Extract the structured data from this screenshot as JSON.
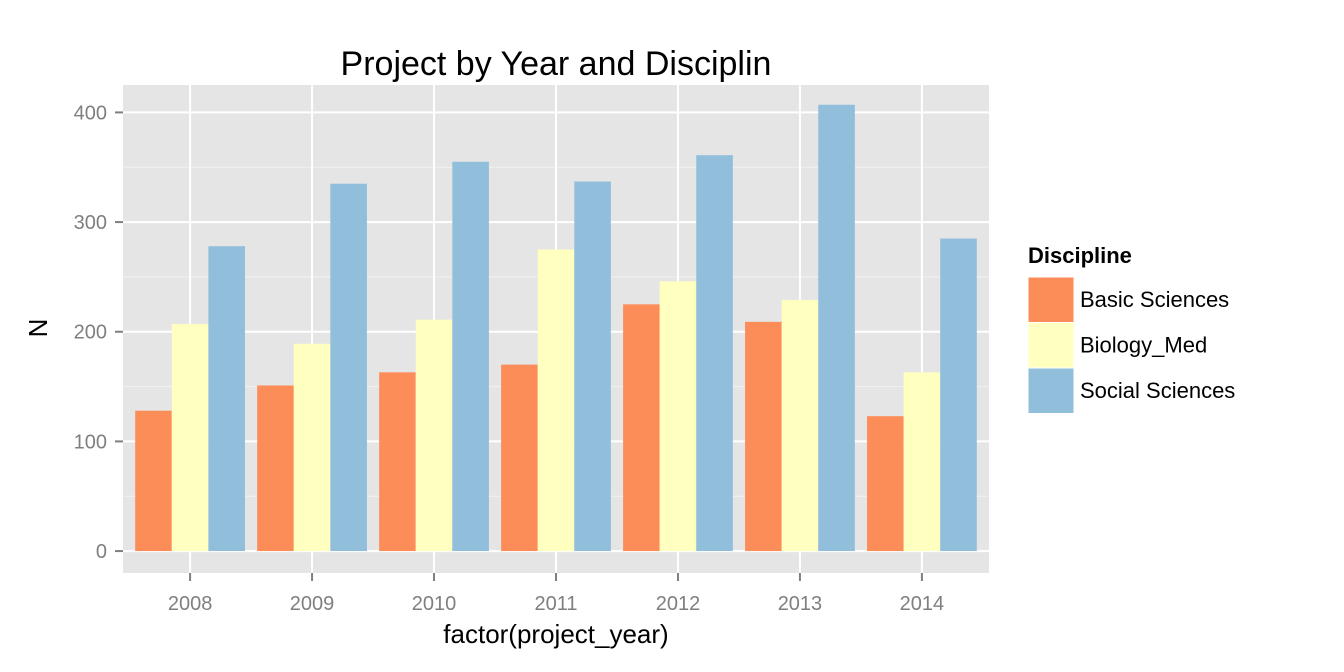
{
  "chart_data": {
    "type": "bar",
    "title": "Project by Year and Disciplin",
    "xlabel": "factor(project_year)",
    "ylabel": "N",
    "categories": [
      "2008",
      "2009",
      "2010",
      "2011",
      "2012",
      "2013",
      "2014"
    ],
    "ylim": [
      -20,
      425
    ],
    "yticks": [
      0,
      100,
      200,
      300,
      400
    ],
    "grid": true,
    "legend_title": "Discipline",
    "legend_position": "right",
    "series": [
      {
        "name": "Basic Sciences",
        "color": "#fc8d59",
        "values": [
          128,
          151,
          163,
          170,
          225,
          209,
          123
        ]
      },
      {
        "name": "Biology_Med",
        "color": "#ffffbf",
        "values": [
          207,
          189,
          211,
          275,
          246,
          229,
          163
        ]
      },
      {
        "name": "Social Sciences",
        "color": "#91bfdb",
        "values": [
          278,
          335,
          355,
          337,
          361,
          407,
          285
        ]
      }
    ]
  }
}
